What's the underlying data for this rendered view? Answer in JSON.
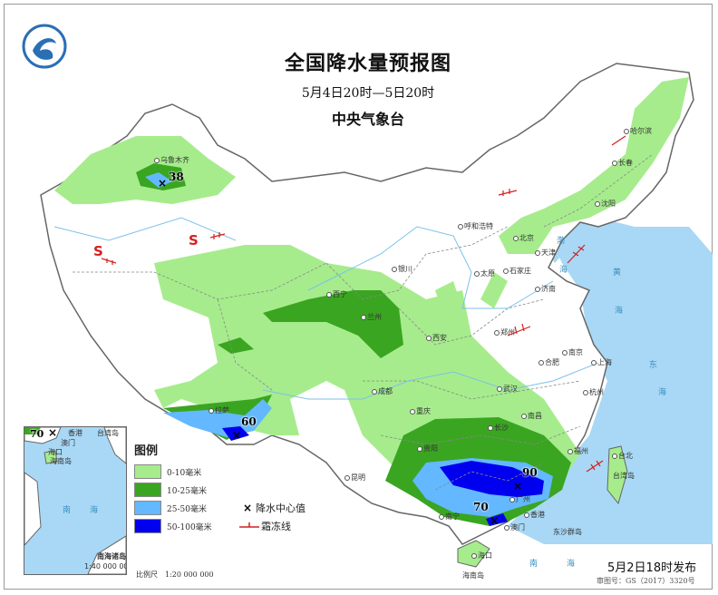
{
  "header": {
    "title": "全国降水量预报图",
    "period": "5月4日20时—5日20时",
    "issuer": "中央气象台"
  },
  "legend": {
    "title": "图例",
    "items": [
      {
        "label": "0-10毫米",
        "color": "#a6ec8c"
      },
      {
        "label": "10-25毫米",
        "color": "#3aa521"
      },
      {
        "label": "25-50毫米",
        "color": "#63b8ff"
      },
      {
        "label": "50-100毫米",
        "color": "#0000ee"
      }
    ],
    "center_symbol": "×",
    "center_label": "降水中心值",
    "frost_label": "霜冻线"
  },
  "precip_centers": [
    {
      "value": "38"
    },
    {
      "value": "60"
    },
    {
      "value": "90"
    },
    {
      "value": "70"
    }
  ],
  "inset": {
    "value": "70",
    "labels": [
      "香港",
      "台湾岛",
      "澳门",
      "海口",
      "海南岛",
      "南",
      "海"
    ],
    "title": "南海诸岛",
    "scale": "1:40 000 000"
  },
  "scale": "比例尺　1:20 000 000",
  "sand_symbol": "S",
  "cities": [
    "乌鲁木齐",
    "拉萨",
    "西宁",
    "兰州",
    "银川",
    "呼和浩特",
    "北京",
    "天津",
    "石家庄",
    "太原",
    "济南",
    "郑州",
    "西安",
    "成都",
    "重庆",
    "贵阳",
    "昆明",
    "南宁",
    "广州",
    "长沙",
    "武汉",
    "南昌",
    "合肥",
    "南京",
    "上海",
    "杭州",
    "福州",
    "台北",
    "沈阳",
    "长春",
    "哈尔滨",
    "海口",
    "香港",
    "澳门"
  ],
  "places": [
    "台湾岛",
    "海南岛",
    "东沙群岛"
  ],
  "seas": [
    "渤",
    "海",
    "黄",
    "海",
    "东",
    "海",
    "南",
    "海"
  ],
  "issued": "5月2日18时发布",
  "review_no": "审图号：GS（2017）3320号",
  "colors": {
    "sea": "#a8d8f5",
    "land": "#ffffff",
    "border": "#777777",
    "frost_line": "#d22020"
  }
}
